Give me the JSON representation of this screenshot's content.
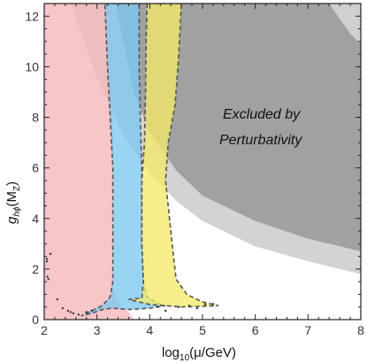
{
  "chart_data": {
    "type": "area",
    "title": "",
    "xlabel_parts": {
      "base": "log",
      "sub": "10",
      "rest": "(μ/GeV)"
    },
    "ylabel_parts": {
      "base": "g",
      "sub": "hϕ",
      "rest": "(M",
      "rest_sub": "Z",
      "tail": ")"
    },
    "xlim": [
      2,
      8
    ],
    "ylim": [
      0,
      12.5
    ],
    "x_ticks": [
      2,
      3,
      4,
      5,
      6,
      7,
      8
    ],
    "y_ticks": [
      0,
      2,
      4,
      6,
      8,
      10,
      12
    ],
    "grid": false,
    "annotation_lines": [
      "Excluded by",
      "Perturbativity"
    ],
    "colors": {
      "pink": "#f4b8bc",
      "blue": "#7ec8f0",
      "yellow": "#f2e96a",
      "gray_dark": "#909090",
      "gray_light": "#c4c4c4",
      "boundary": "#555555"
    },
    "series": [
      {
        "key": "excl_light",
        "fill": "#c4c4c4",
        "opacity": 0.75,
        "dashed": false,
        "polygon": [
          [
            2.5,
            12.5
          ],
          [
            3.0,
            9.5
          ],
          [
            3.5,
            7.3
          ],
          [
            4.0,
            5.8
          ],
          [
            4.5,
            4.7
          ],
          [
            5.0,
            3.9
          ],
          [
            6.0,
            2.9
          ],
          [
            7.0,
            2.3
          ],
          [
            8.0,
            1.8
          ],
          [
            8.0,
            12.5
          ]
        ]
      },
      {
        "key": "excl_dark",
        "fill": "#909090",
        "opacity": 0.75,
        "dashed": false,
        "polygon": [
          [
            3.35,
            12.5
          ],
          [
            3.7,
            9.0
          ],
          [
            4.0,
            7.4
          ],
          [
            4.5,
            5.9
          ],
          [
            5.0,
            4.9
          ],
          [
            6.0,
            3.9
          ],
          [
            7.0,
            3.2
          ],
          [
            8.0,
            2.7
          ],
          [
            8.0,
            12.5
          ]
        ]
      },
      {
        "key": "excl_top_right",
        "fill": "#d0d0d0",
        "opacity": 1.0,
        "dashed": false,
        "polygon": [
          [
            7.4,
            12.5
          ],
          [
            7.8,
            11.3
          ],
          [
            8.0,
            10.9
          ],
          [
            8.0,
            12.5
          ]
        ]
      },
      {
        "key": "pink_band",
        "fill": "#f4b8bc",
        "opacity": 0.8,
        "dashed": false,
        "polygon": [
          [
            2.0,
            0.0
          ],
          [
            3.7,
            0.0
          ],
          [
            3.6,
            0.3
          ],
          [
            3.4,
            0.7
          ],
          [
            3.3,
            1.2
          ],
          [
            3.3,
            2.5
          ],
          [
            3.3,
            4.5
          ],
          [
            3.3,
            6.0
          ],
          [
            3.3,
            8.0
          ],
          [
            3.3,
            10.0
          ],
          [
            3.3,
            12.5
          ],
          [
            2.0,
            12.5
          ]
        ]
      },
      {
        "key": "blue_band",
        "fill": "#7ec8f0",
        "opacity": 0.78,
        "dashed": true,
        "polygon": [
          [
            3.15,
            12.5
          ],
          [
            3.8,
            12.5
          ],
          [
            3.8,
            10.0
          ],
          [
            3.82,
            8.0
          ],
          [
            3.85,
            6.0
          ],
          [
            3.85,
            4.5
          ],
          [
            3.85,
            3.0
          ],
          [
            3.88,
            1.5
          ],
          [
            3.95,
            0.9
          ],
          [
            4.15,
            0.65
          ],
          [
            4.3,
            0.55
          ],
          [
            4.0,
            0.45
          ],
          [
            3.6,
            0.4
          ],
          [
            3.3,
            0.45
          ],
          [
            3.1,
            0.4
          ],
          [
            2.9,
            0.25
          ],
          [
            2.7,
            0.15
          ],
          [
            2.85,
            0.3
          ],
          [
            3.1,
            0.55
          ],
          [
            3.25,
            0.9
          ],
          [
            3.3,
            1.5
          ],
          [
            3.3,
            3.0
          ],
          [
            3.3,
            4.5
          ],
          [
            3.3,
            6.0
          ],
          [
            3.25,
            8.0
          ],
          [
            3.2,
            10.0
          ]
        ]
      },
      {
        "key": "yellow_band",
        "fill": "#f2e96a",
        "opacity": 0.78,
        "dashed": true,
        "polygon": [
          [
            3.95,
            12.5
          ],
          [
            4.6,
            12.5
          ],
          [
            4.55,
            10.5
          ],
          [
            4.48,
            8.5
          ],
          [
            4.35,
            7.0
          ],
          [
            4.3,
            5.5
          ],
          [
            4.35,
            4.5
          ],
          [
            4.4,
            3.5
          ],
          [
            4.45,
            2.5
          ],
          [
            4.5,
            1.6
          ],
          [
            4.7,
            1.0
          ],
          [
            5.0,
            0.7
          ],
          [
            5.3,
            0.55
          ],
          [
            4.6,
            0.5
          ],
          [
            4.0,
            0.6
          ],
          [
            3.6,
            0.8
          ],
          [
            3.85,
            0.85
          ],
          [
            3.88,
            1.5
          ],
          [
            3.85,
            3.0
          ],
          [
            3.85,
            4.5
          ],
          [
            3.85,
            5.5
          ],
          [
            3.9,
            7.0
          ],
          [
            3.92,
            9.0
          ],
          [
            3.93,
            11.0
          ]
        ]
      }
    ],
    "scatter_points": [
      [
        2.05,
        2.4
      ],
      [
        2.05,
        2.3
      ],
      [
        2.06,
        1.7
      ],
      [
        2.08,
        1.6
      ],
      [
        2.12,
        2.6
      ],
      [
        2.25,
        0.8
      ],
      [
        2.35,
        0.45
      ],
      [
        2.45,
        0.35
      ],
      [
        2.5,
        0.3
      ],
      [
        2.55,
        0.25
      ],
      [
        2.65,
        0.2
      ],
      [
        2.8,
        0.3
      ],
      [
        2.9,
        0.35
      ],
      [
        4.15,
        0.5
      ],
      [
        4.3,
        0.35
      ],
      [
        4.55,
        0.5
      ],
      [
        4.75,
        0.55
      ],
      [
        4.9,
        0.45
      ],
      [
        5.05,
        0.6
      ],
      [
        5.2,
        0.62
      ]
    ]
  }
}
